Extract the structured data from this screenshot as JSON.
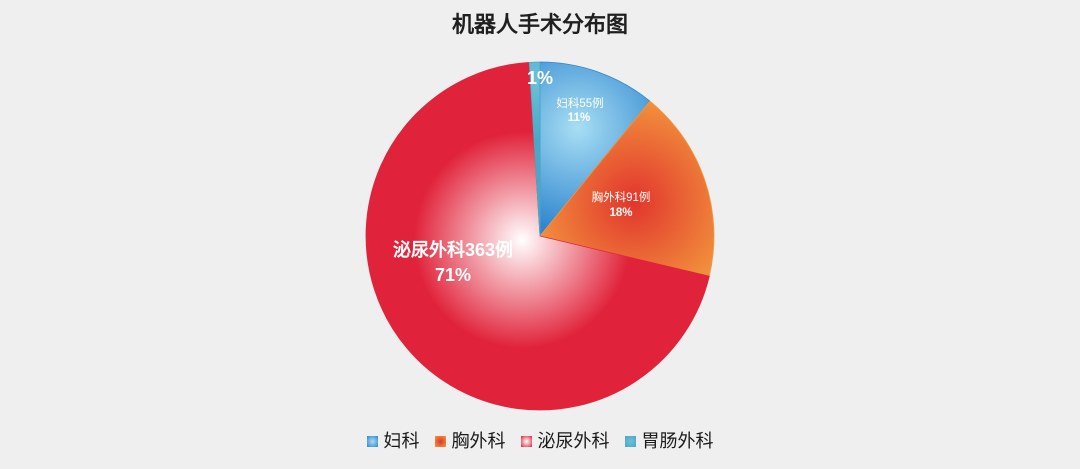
{
  "chart_data": {
    "type": "pie",
    "title": "机器人手术分布图",
    "categories": [
      "妇科",
      "胸外科",
      "泌尿外科",
      "胃肠外科"
    ],
    "values": [
      11,
      18,
      71,
      1
    ],
    "counts": [
      55,
      91,
      363,
      null
    ],
    "data_labels": [
      {
        "text": "妇科55例",
        "percent": "11%"
      },
      {
        "text": "胸外科91例",
        "percent": "18%"
      },
      {
        "text": "泌尿外科363例",
        "percent": "71%"
      },
      {
        "percent": "1%"
      }
    ],
    "start": "top",
    "direction": "clockwise",
    "legend_position": "bottom",
    "colors": [
      "#2f86cf",
      "#f39a3e",
      "#e0233a",
      "#4aa8c6"
    ],
    "gradient_inner_colors": [
      "#a8def4",
      "#e2352d",
      "#ffffff",
      "#6cc0d8"
    ],
    "label_color": "#ffffff"
  }
}
